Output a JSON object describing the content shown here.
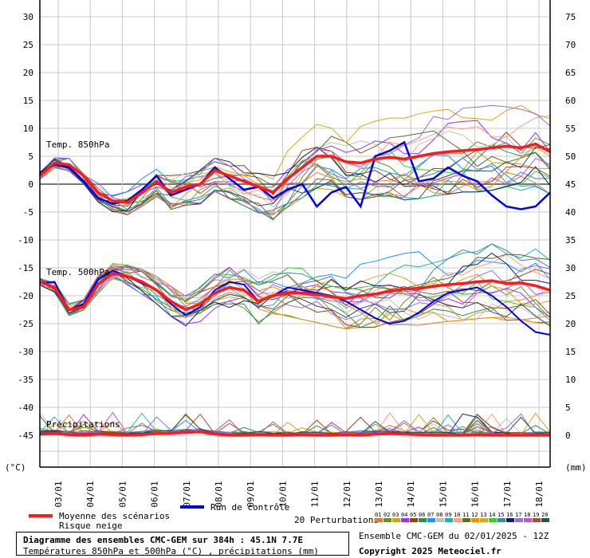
{
  "chart_data": {
    "type": "line",
    "left_axis_unit": "(°C)",
    "right_axis_unit": "(mm)",
    "left_ticks": [
      30,
      25,
      20,
      15,
      10,
      5,
      0,
      -5,
      -10,
      -15,
      -20,
      -25,
      -30,
      -35,
      -40,
      -45
    ],
    "right_ticks": [
      75,
      70,
      65,
      60,
      55,
      50,
      45,
      40,
      35,
      30,
      25,
      20,
      15,
      10,
      5,
      0
    ],
    "left_range": [
      -45,
      30
    ],
    "right_range": [
      0,
      75
    ],
    "x_labels": [
      "03/01",
      "04/01",
      "05/01",
      "06/01",
      "07/01",
      "08/01",
      "09/01",
      "10/01",
      "11/01",
      "12/01",
      "13/01",
      "14/01",
      "15/01",
      "16/01",
      "17/01",
      "18/01"
    ],
    "section_labels": {
      "t850": "Temp. 850hPa",
      "t500": "Temp. 500hPa",
      "precip": "Précipitations"
    },
    "legend": {
      "mean": "Moyenne des scénarios",
      "control": "Run de contrôle",
      "snow": "Risque neige",
      "perturbations": "20 Perturbations",
      "pert_numbers": [
        "01",
        "02",
        "03",
        "04",
        "05",
        "06",
        "07",
        "08",
        "09",
        "10",
        "11",
        "12",
        "13",
        "14",
        "15",
        "16",
        "17",
        "18",
        "19",
        "20"
      ]
    },
    "colors": {
      "mean": "#ff1a1a",
      "control": "#0000ee",
      "perturbations": [
        "#e07b39",
        "#6b8e23",
        "#d4a017",
        "#9b30ff",
        "#8b4513",
        "#2e8b57",
        "#1e90ff",
        "#c0c0c0",
        "#20b2aa",
        "#ffa07a",
        "#556b2f",
        "#ff8c00",
        "#daa520",
        "#32cd32",
        "#4682b4",
        "#191970",
        "#9370db",
        "#ba55d3",
        "#a0522d",
        "#2f4f4f"
      ]
    },
    "mean_t850": [
      1.5,
      3.8,
      3.5,
      1.5,
      -1.5,
      -3.0,
      -3.3,
      -1.5,
      0.5,
      -1.5,
      -0.5,
      0.0,
      2.5,
      1.5,
      0.5,
      -0.5,
      -1.5,
      1.0,
      3.0,
      5.0,
      5.0,
      4.0,
      3.8,
      4.5,
      4.8,
      4.5,
      5.0,
      5.5,
      5.8,
      6.0,
      6.2,
      6.5,
      6.8,
      6.5,
      7.2,
      5.8
    ],
    "control_t850": [
      2.0,
      3.5,
      3.0,
      0.5,
      -2.5,
      -3.5,
      -3.0,
      -1.0,
      1.5,
      -2.0,
      -1.0,
      0.0,
      3.0,
      1.0,
      -1.0,
      -0.5,
      -2.5,
      -1.0,
      0.0,
      -4.0,
      -1.5,
      -0.5,
      -4.0,
      5.0,
      6.0,
      7.5,
      0.5,
      1.0,
      3.0,
      1.5,
      0.5,
      -2.0,
      -4.0,
      -4.5,
      -4.0,
      -1.5
    ],
    "mean_t500": [
      -17.5,
      -18.5,
      -22.5,
      -22.0,
      -18.0,
      -16.0,
      -16.5,
      -17.5,
      -19.0,
      -21.0,
      -22.5,
      -21.5,
      -19.5,
      -18.5,
      -19.0,
      -21.0,
      -20.0,
      -19.5,
      -19.5,
      -19.8,
      -20.2,
      -20.5,
      -20.0,
      -19.7,
      -19.2,
      -18.8,
      -18.7,
      -18.3,
      -18.0,
      -17.8,
      -17.5,
      -17.3,
      -17.8,
      -17.7,
      -18.2,
      -19.0
    ],
    "control_t500": [
      -17.8,
      -17.5,
      -22.5,
      -21.5,
      -17.0,
      -15.5,
      -16.5,
      -17.8,
      -19.0,
      -21.5,
      -23.5,
      -22.0,
      -19.0,
      -17.5,
      -18.0,
      -21.0,
      -20.0,
      -18.5,
      -19.0,
      -19.5,
      -20.0,
      -21.0,
      -22.5,
      -24.0,
      -25.0,
      -24.5,
      -23.0,
      -21.0,
      -19.5,
      -19.0,
      -18.5,
      -20.0,
      -22.0,
      -24.5,
      -26.5,
      -27.0
    ],
    "mean_precip": [
      0.2,
      0.3,
      0.1,
      0.0,
      0.2,
      0.1,
      0.0,
      0.1,
      0.3,
      0.4,
      0.5,
      0.6,
      0.2,
      0.0,
      0.0,
      0.1,
      0.0,
      0.0,
      0.1,
      0.0,
      0.0,
      0.1,
      0.0,
      0.2,
      0.3,
      0.2,
      0.1,
      0.0,
      0.0,
      0.0,
      0.1,
      0.0,
      0.0,
      0.0,
      0.0,
      0.0
    ]
  },
  "footer": {
    "title": "Diagramme des ensembles CMC-GEM sur 384h : 45.1N 7.7E",
    "subtitle": "Températures 850hPa et 500hPa (°C) , précipitations (mm)",
    "ensemble_info": "Ensemble CMC-GEM du 02/01/2025 - 12Z",
    "copyright": "Copyright 2025 Meteociel.fr"
  }
}
